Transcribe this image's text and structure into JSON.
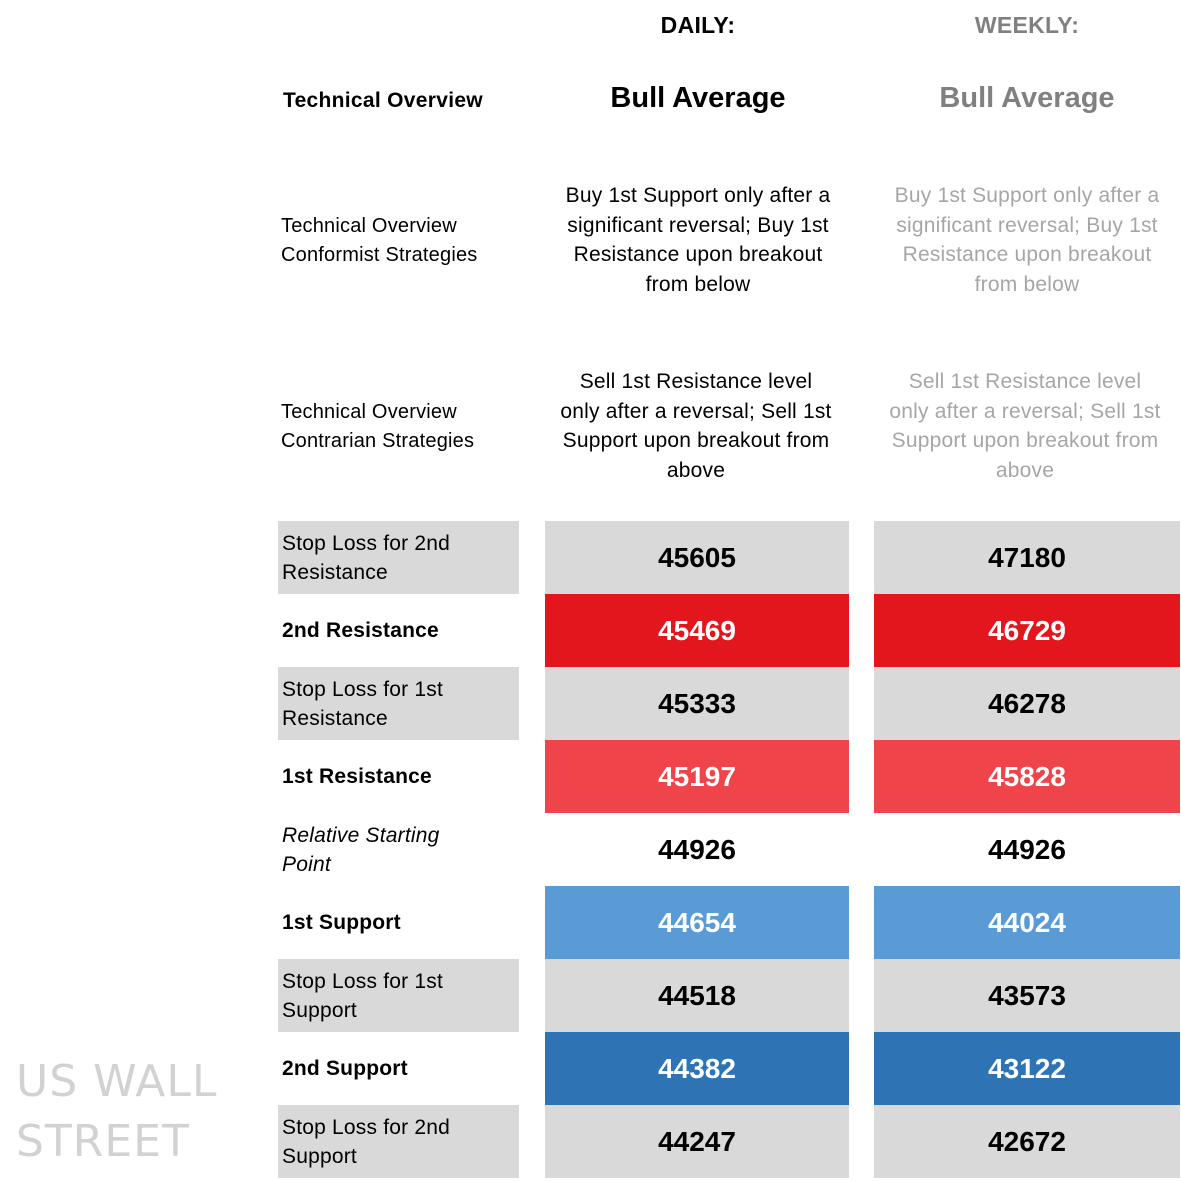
{
  "header": {
    "daily_label": "DAILY:",
    "weekly_label": "WEEKLY:",
    "row_title": "Technical Overview",
    "daily_title": "Bull Average",
    "weekly_title": "Bull Average"
  },
  "strategies": {
    "conformist_label": [
      "Technical Overview",
      "Conformist Strategies"
    ],
    "conformist_daily": [
      "Buy 1st Support only after a",
      "significant reversal; Buy 1st",
      "Resistance upon breakout",
      "from below"
    ],
    "conformist_weekly": [
      "Buy 1st Support only after a",
      "significant reversal; Buy 1st",
      "Resistance upon breakout",
      "from below"
    ],
    "contrarian_label": [
      "Technical Overview",
      "Contrarian Strategies"
    ],
    "contrarian_daily": [
      "Sell 1st Resistance level",
      "only after a reversal; Sell 1st",
      "Support upon breakout from",
      "above"
    ],
    "contrarian_weekly": [
      "Sell 1st Resistance level",
      "only after a reversal; Sell 1st",
      "Support upon breakout from",
      "above"
    ]
  },
  "colors": {
    "label_grey": "#d9d9d9",
    "resistance_2": "#e3161d",
    "resistance_1": "#ee444a",
    "support_1": "#5b9bd5",
    "support_2": "#2e74b5"
  },
  "levels": [
    {
      "label": [
        "Stop Loss for 2nd",
        "Resistance"
      ],
      "daily": "45605",
      "weekly": "47180"
    },
    {
      "label": [
        "2nd Resistance"
      ],
      "daily": "45469",
      "weekly": "46729"
    },
    {
      "label": [
        "Stop Loss for 1st",
        "Resistance"
      ],
      "daily": "45333",
      "weekly": "46278"
    },
    {
      "label": [
        "1st Resistance"
      ],
      "daily": "45197",
      "weekly": "45828"
    },
    {
      "label": [
        "Relative Starting",
        "Point"
      ],
      "daily": "44926",
      "weekly": "44926"
    },
    {
      "label": [
        "1st Support"
      ],
      "daily": "44654",
      "weekly": "44024"
    },
    {
      "label": [
        "Stop Loss for 1st",
        "Support"
      ],
      "daily": "44518",
      "weekly": "43573"
    },
    {
      "label": [
        "2nd Support"
      ],
      "daily": "44382",
      "weekly": "43122"
    },
    {
      "label": [
        "Stop Loss for 2nd",
        "Support"
      ],
      "daily": "44247",
      "weekly": "42672"
    }
  ],
  "watermark": [
    "US WALL",
    "STREET"
  ]
}
